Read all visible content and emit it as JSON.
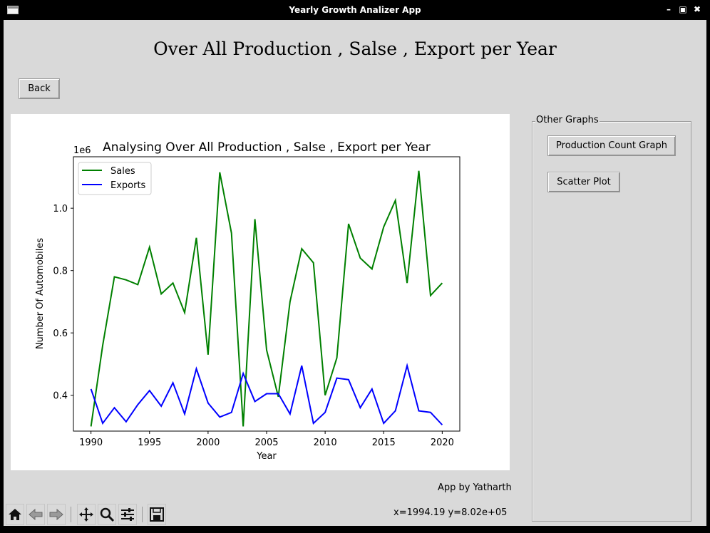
{
  "window": {
    "title": "Yearly Growth Analizer App"
  },
  "page_heading": "Over All Production , Salse , Export per Year",
  "back_button": "Back",
  "side_panel": {
    "title": "Other Graphs",
    "buttons": [
      "Production Count Graph",
      "Scatter Plot"
    ]
  },
  "credit": "App by Yatharth",
  "status": {
    "coords": "x=1994.19 y=8.02e+05"
  },
  "toolbar": {
    "icons": [
      "home-icon",
      "back-arrow-icon",
      "forward-arrow-icon",
      "pan-icon",
      "zoom-icon",
      "configure-subplots-icon",
      "save-icon"
    ]
  },
  "chart_data": {
    "type": "line",
    "title": "Analysing Over All Production , Salse , Export per Year",
    "xlabel": "Year",
    "ylabel": "Number Of Automobiles",
    "y_offset_label": "1e6",
    "xlim": [
      1988.5,
      2021.5
    ],
    "ylim": [
      0.285,
      1.165
    ],
    "xticks": [
      1990,
      1995,
      2000,
      2005,
      2010,
      2015,
      2020
    ],
    "yticks": [
      0.4,
      0.6,
      0.8,
      1.0
    ],
    "ytick_labels": [
      "0.4",
      "0.6",
      "0.8",
      "1.0"
    ],
    "grid": false,
    "legend_position": "upper left",
    "x": [
      1990,
      1991,
      1992,
      1993,
      1994,
      1995,
      1996,
      1997,
      1998,
      1999,
      2000,
      2001,
      2002,
      2003,
      2004,
      2005,
      2006,
      2007,
      2008,
      2009,
      2010,
      2011,
      2012,
      2013,
      2014,
      2015,
      2016,
      2017,
      2018,
      2019,
      2020
    ],
    "series": [
      {
        "name": "Sales",
        "color": "#008000",
        "values": [
          0.3,
          0.56,
          0.78,
          0.77,
          0.755,
          0.875,
          0.725,
          0.76,
          0.665,
          0.905,
          0.53,
          1.115,
          0.92,
          0.3,
          0.965,
          0.545,
          0.395,
          0.7,
          0.87,
          0.825,
          0.4,
          0.52,
          0.95,
          0.84,
          0.805,
          0.94,
          1.025,
          0.76,
          1.12,
          0.72,
          0.76
        ]
      },
      {
        "name": "Exports",
        "color": "#0000ff",
        "values": [
          0.42,
          0.31,
          0.36,
          0.315,
          0.37,
          0.415,
          0.365,
          0.44,
          0.34,
          0.485,
          0.375,
          0.33,
          0.345,
          0.47,
          0.38,
          0.405,
          0.405,
          0.34,
          0.495,
          0.31,
          0.345,
          0.455,
          0.45,
          0.36,
          0.42,
          0.31,
          0.35,
          0.495,
          0.35,
          0.345,
          0.305
        ]
      }
    ]
  }
}
